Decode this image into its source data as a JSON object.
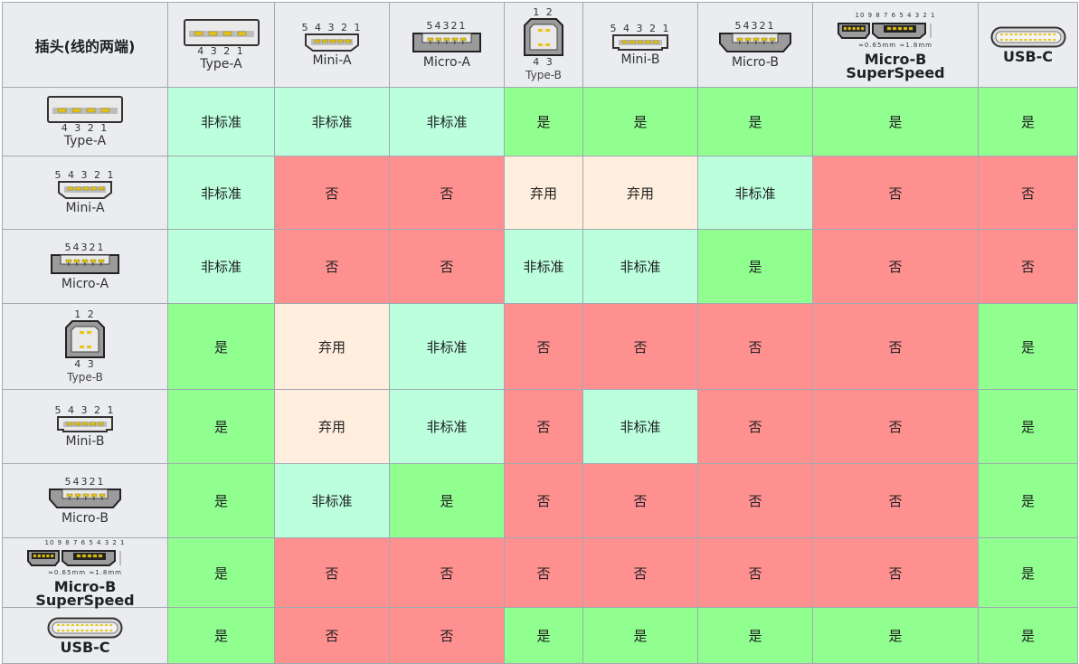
{
  "corner_label": "插头(线的两端)",
  "columns": [
    {
      "key": "type-a",
      "label": "Type-A",
      "pins_top": "",
      "pins_bottom": "4 3 2 1",
      "style": "normal"
    },
    {
      "key": "mini-a",
      "label": "Mini-A",
      "pins_top": "5 4 3 2 1",
      "pins_bottom": "",
      "style": "normal"
    },
    {
      "key": "micro-a",
      "label": "Micro-A",
      "pins_top": "54321",
      "pins_bottom": "",
      "style": "normal"
    },
    {
      "key": "type-b",
      "label": "Type-B",
      "pins_top": "1 2",
      "pins_bottom": "4 3",
      "style": "small"
    },
    {
      "key": "mini-b",
      "label": "Mini-B",
      "pins_top": "5 4 3 2 1",
      "pins_bottom": "",
      "style": "normal"
    },
    {
      "key": "micro-b",
      "label": "Micro-B",
      "pins_top": "54321",
      "pins_bottom": "",
      "style": "normal"
    },
    {
      "key": "micro-b-ss",
      "label": "Micro-B SuperSpeed",
      "pins_top": "10 9 8 7 6   5 4 3 2 1",
      "pins_bottom": "",
      "style": "bold"
    },
    {
      "key": "usb-c",
      "label": "USB-C",
      "pins_top": "",
      "pins_bottom": "",
      "style": "bold"
    }
  ],
  "rows": [
    {
      "key": "type-a",
      "label": "Type-A",
      "pins_top": "",
      "pins_bottom": "4 3 2 1",
      "style": "normal",
      "cells": [
        "非标准",
        "非标准",
        "非标准",
        "是",
        "是",
        "是",
        "是",
        "是"
      ]
    },
    {
      "key": "mini-a",
      "label": "Mini-A",
      "pins_top": "5 4 3 2 1",
      "pins_bottom": "",
      "style": "normal",
      "cells": [
        "非标准",
        "否",
        "否",
        "弃用",
        "弃用",
        "非标准",
        "否",
        "否"
      ]
    },
    {
      "key": "micro-a",
      "label": "Micro-A",
      "pins_top": "54321",
      "pins_bottom": "",
      "style": "normal",
      "cells": [
        "非标准",
        "否",
        "否",
        "非标准",
        "非标准",
        "是",
        "否",
        "否"
      ]
    },
    {
      "key": "type-b",
      "label": "Type-B",
      "pins_top": "1 2",
      "pins_bottom": "4 3",
      "style": "small",
      "cells": [
        "是",
        "弃用",
        "非标准",
        "否",
        "否",
        "否",
        "否",
        "是"
      ]
    },
    {
      "key": "mini-b",
      "label": "Mini-B",
      "pins_top": "5 4 3 2 1",
      "pins_bottom": "",
      "style": "normal",
      "cells": [
        "是",
        "弃用",
        "非标准",
        "否",
        "非标准",
        "否",
        "否",
        "是"
      ]
    },
    {
      "key": "micro-b",
      "label": "Micro-B",
      "pins_top": "54321",
      "pins_bottom": "",
      "style": "normal",
      "cells": [
        "是",
        "非标准",
        "是",
        "否",
        "否",
        "否",
        "否",
        "是"
      ]
    },
    {
      "key": "micro-b-ss",
      "label": "Micro-B SuperSpeed",
      "pins_top": "10 9 8 7 6   5 4 3 2 1",
      "pins_bottom": "",
      "style": "bold",
      "cells": [
        "是",
        "否",
        "否",
        "否",
        "否",
        "否",
        "否",
        "是"
      ]
    },
    {
      "key": "usb-c",
      "label": "USB-C",
      "pins_top": "",
      "pins_bottom": "",
      "style": "bold",
      "cells": [
        "是",
        "否",
        "否",
        "是",
        "是",
        "是",
        "是",
        "是"
      ]
    }
  ],
  "value_classes": {
    "是": "v-yes",
    "否": "v-no",
    "非标准": "v-ns",
    "弃用": "v-dep"
  },
  "colors": {
    "yes": "#90ff90",
    "no": "#ff9090",
    "nonstandard": "#bbffdd",
    "deprecated": "#ffeedd",
    "header": "#eaecf0"
  },
  "icons": {
    "type-a": "usb-type-a-connector-icon",
    "mini-a": "usb-mini-a-connector-icon",
    "micro-a": "usb-micro-a-connector-icon",
    "type-b": "usb-type-b-connector-icon",
    "mini-b": "usb-mini-b-connector-icon",
    "micro-b": "usb-micro-b-connector-icon",
    "micro-b-ss": "usb-micro-b-superspeed-connector-icon",
    "usb-c": "usb-c-connector-icon"
  },
  "superspeed_dims": {
    "height": "≈1.8mm",
    "pitch": "≈0.65mm"
  }
}
